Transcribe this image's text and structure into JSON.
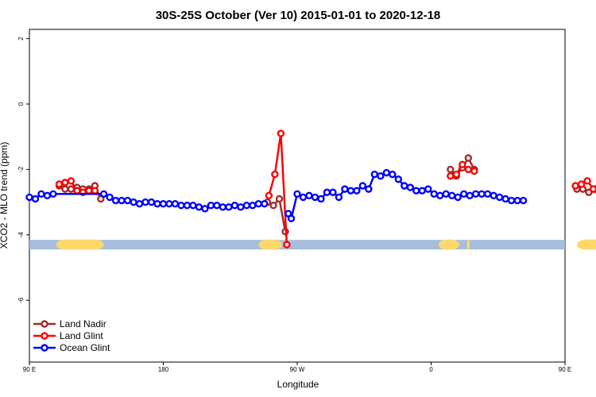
{
  "chart_data": {
    "type": "line",
    "title": "30S-25S October (Ver 10)   2015-01-01 to 2020-12-18",
    "xlabel": "Longitude",
    "ylabel": "XCO2 - MLO trend (ppm)",
    "xlim": [
      90,
      450
    ],
    "ylim": [
      -8,
      2.2
    ],
    "x_ticks": [
      {
        "value": 90,
        "label": "90 E"
      },
      {
        "value": 180,
        "label": "180"
      },
      {
        "value": 270,
        "label": "90 W"
      },
      {
        "value": 360,
        "label": "0"
      },
      {
        "value": 450,
        "label": "90 E"
      },
      {
        "value": 540,
        "label": "180"
      }
    ],
    "y_ticks": [
      {
        "value": 2,
        "label": "2"
      },
      {
        "value": 0,
        "label": "0"
      },
      {
        "value": -2,
        "label": "-2"
      },
      {
        "value": -4,
        "label": "-4"
      },
      {
        "value": -6,
        "label": "-6"
      }
    ],
    "land_mask": {
      "y": -4.3,
      "ocean_color": "#a6bddb",
      "land_color": "#fdd96b",
      "land_ranges": [
        [
          108,
          140
        ],
        [
          244,
          260
        ],
        [
          365,
          379
        ],
        [
          384,
          386
        ],
        [
          458,
          491
        ]
      ]
    },
    "legend": {
      "placement": "bottom-left"
    },
    "series": [
      {
        "name": "Land Nadir",
        "color": "#a52a2a",
        "values": [
          [
            110,
            -2.5
          ],
          [
            114,
            -2.6
          ],
          [
            118,
            -2.6
          ],
          [
            122,
            -2.55
          ],
          [
            126,
            -2.6
          ],
          [
            130,
            -2.6
          ],
          [
            134,
            -2.5
          ],
          [
            138,
            -2.9
          ],
          null,
          [
            250,
            -3.0
          ],
          [
            254,
            -3.1
          ],
          [
            258,
            -2.9
          ],
          [
            262,
            -3.9
          ],
          null,
          [
            373,
            -2.0
          ],
          [
            377,
            -2.2
          ],
          [
            381,
            -1.95
          ],
          [
            385,
            -1.65
          ],
          [
            389,
            -2.0
          ],
          null,
          [
            458,
            -2.6
          ],
          [
            462,
            -2.6
          ],
          [
            466,
            -2.7
          ],
          [
            470,
            -2.6
          ],
          [
            474,
            -2.7
          ],
          [
            478,
            -2.6
          ],
          [
            482,
            -2.5
          ],
          [
            486,
            -2.9
          ]
        ]
      },
      {
        "name": "Land Glint",
        "color": "#ff0000",
        "values": [
          [
            110,
            -2.45
          ],
          [
            114,
            -2.4
          ],
          [
            118,
            -2.35
          ],
          [
            122,
            -2.65
          ],
          [
            126,
            -2.7
          ],
          [
            130,
            -2.65
          ],
          [
            134,
            -2.65
          ],
          null,
          [
            251,
            -2.8
          ],
          [
            255,
            -2.15
          ],
          [
            259,
            -0.9
          ],
          [
            263,
            -4.3
          ],
          null,
          [
            373,
            -2.2
          ],
          [
            377,
            -2.15
          ],
          [
            381,
            -1.85
          ],
          [
            385,
            -2.0
          ],
          [
            389,
            -2.05
          ],
          null,
          [
            457,
            -2.5
          ],
          [
            461,
            -2.45
          ],
          [
            465,
            -2.35
          ],
          [
            469,
            -2.6
          ],
          [
            473,
            -2.7
          ],
          [
            477,
            -2.65
          ],
          [
            481,
            -2.6
          ],
          [
            485,
            -2.65
          ]
        ]
      },
      {
        "name": "Ocean Glint",
        "color": "#0000ff",
        "values": [
          [
            90,
            -2.85
          ],
          [
            94,
            -2.9
          ],
          [
            98,
            -2.75
          ],
          [
            102,
            -2.8
          ],
          [
            106,
            -2.75
          ],
          [
            140,
            -2.75
          ],
          [
            144,
            -2.85
          ],
          [
            148,
            -2.95
          ],
          [
            152,
            -2.95
          ],
          [
            156,
            -2.95
          ],
          [
            160,
            -3.0
          ],
          [
            164,
            -3.05
          ],
          [
            168,
            -3.0
          ],
          [
            172,
            -3.0
          ],
          [
            176,
            -3.05
          ],
          [
            180,
            -3.05
          ],
          [
            184,
            -3.05
          ],
          [
            188,
            -3.05
          ],
          [
            192,
            -3.1
          ],
          [
            196,
            -3.1
          ],
          [
            200,
            -3.1
          ],
          [
            204,
            -3.15
          ],
          [
            208,
            -3.2
          ],
          [
            212,
            -3.1
          ],
          [
            216,
            -3.1
          ],
          [
            220,
            -3.15
          ],
          [
            224,
            -3.15
          ],
          [
            228,
            -3.1
          ],
          [
            232,
            -3.15
          ],
          [
            236,
            -3.1
          ],
          [
            240,
            -3.1
          ],
          [
            244,
            -3.05
          ],
          [
            248,
            -3.05
          ],
          null,
          [
            264,
            -3.35
          ],
          [
            266,
            -3.5
          ],
          [
            270,
            -2.75
          ],
          [
            274,
            -2.85
          ],
          [
            278,
            -2.8
          ],
          [
            282,
            -2.85
          ],
          [
            286,
            -2.9
          ],
          [
            290,
            -2.7
          ],
          [
            294,
            -2.7
          ],
          [
            298,
            -2.85
          ],
          [
            302,
            -2.6
          ],
          [
            306,
            -2.65
          ],
          [
            310,
            -2.65
          ],
          [
            314,
            -2.5
          ],
          [
            318,
            -2.6
          ],
          [
            322,
            -2.15
          ],
          [
            326,
            -2.2
          ],
          [
            330,
            -2.1
          ],
          [
            334,
            -2.15
          ],
          [
            338,
            -2.3
          ],
          [
            342,
            -2.5
          ],
          [
            346,
            -2.55
          ],
          [
            350,
            -2.65
          ],
          [
            354,
            -2.65
          ],
          [
            358,
            -2.6
          ],
          [
            362,
            -2.75
          ],
          [
            366,
            -2.8
          ],
          [
            370,
            -2.75
          ],
          [
            374,
            -2.8
          ],
          [
            378,
            -2.85
          ],
          [
            382,
            -2.75
          ],
          [
            386,
            -2.8
          ],
          [
            390,
            -2.75
          ],
          [
            394,
            -2.75
          ],
          [
            398,
            -2.75
          ],
          [
            402,
            -2.8
          ],
          [
            406,
            -2.85
          ],
          [
            410,
            -2.9
          ],
          [
            414,
            -2.95
          ],
          [
            418,
            -2.95
          ],
          [
            422,
            -2.95
          ]
        ]
      }
    ]
  }
}
